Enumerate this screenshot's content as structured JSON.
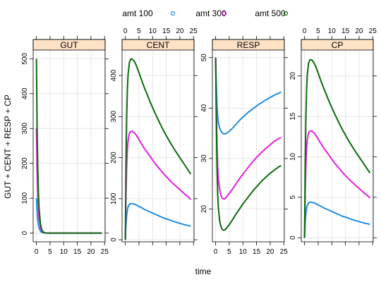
{
  "chart_data": {
    "type": "line",
    "layout": "lattice panels",
    "xlabel": "time",
    "ylabel": "GUT + CENT + RESP + CP",
    "legend_position": "top",
    "grid": true,
    "strip_color": "#fde2c6",
    "legend": [
      {
        "label": "amt 100",
        "color": "#1f8de0"
      },
      {
        "label": "amt 300",
        "color": "#e31ee0"
      },
      {
        "label": "amt 500",
        "color": "#0b6b0b"
      }
    ],
    "x": [
      0,
      0.25,
      0.5,
      0.75,
      1,
      1.5,
      2,
      2.5,
      3,
      3.5,
      4,
      5,
      6,
      7,
      8,
      9,
      10,
      11,
      12,
      13,
      14,
      15,
      16,
      17,
      18,
      19,
      20,
      21,
      22,
      23,
      24
    ],
    "xlim": [
      -1.2,
      25.2
    ],
    "xticks": [
      "0",
      "5",
      "10",
      "15",
      "20",
      "25"
    ],
    "panels": [
      {
        "title": "GUT",
        "ylim": [
          -25,
          525
        ],
        "yticks": [
          "0",
          "100",
          "200",
          "300",
          "400",
          "500"
        ],
        "series": [
          {
            "name": "amt 100",
            "values": [
              100,
              61,
              37,
              22,
              14,
              5,
              2,
              1,
              0.5,
              0.2,
              0.1,
              0,
              0,
              0,
              0,
              0,
              0,
              0,
              0,
              0,
              0,
              0,
              0,
              0,
              0,
              0,
              0,
              0,
              0,
              0,
              0
            ]
          },
          {
            "name": "amt 300",
            "values": [
              300,
              182,
              110,
              67,
              41,
              15,
              6,
              2,
              1,
              0.3,
              0.1,
              0,
              0,
              0,
              0,
              0,
              0,
              0,
              0,
              0,
              0,
              0,
              0,
              0,
              0,
              0,
              0,
              0,
              0,
              0,
              0
            ]
          },
          {
            "name": "amt 500",
            "values": [
              500,
              303,
              184,
              112,
              68,
              25,
              9,
              3,
              1,
              0.5,
              0.2,
              0,
              0,
              0,
              0,
              0,
              0,
              0,
              0,
              0,
              0,
              0,
              0,
              0,
              0,
              0,
              0,
              0,
              0,
              0,
              0
            ]
          }
        ]
      },
      {
        "title": "CENT",
        "ylim": [
          -5,
          462
        ],
        "yticks": [
          "0",
          "100",
          "200",
          "300",
          "400"
        ],
        "series": [
          {
            "name": "amt 100",
            "values": [
              0,
              38,
              60,
              73,
              80,
              86,
              88,
              88,
              87,
              86,
              85,
              81,
              78,
              74,
              71,
              68,
              65,
              62,
              59,
              56,
              53,
              51,
              49,
              46,
              44,
              42,
              40,
              38,
              36,
              35,
              33
            ]
          },
          {
            "name": "amt 300",
            "values": [
              0,
              114,
              181,
              219,
              241,
              259,
              264,
              264,
              262,
              259,
              255,
              244,
              233,
              222,
              213,
              204,
              194,
              185,
              177,
              169,
              161,
              154,
              147,
              140,
              134,
              128,
              122,
              116,
              110,
              105,
              98
            ]
          },
          {
            "name": "amt 500",
            "values": [
              0,
              190,
              301,
              365,
              402,
              432,
              440,
              440,
              437,
              432,
              425,
              407,
              388,
              370,
              354,
              337,
              322,
              307,
              293,
              279,
              266,
              254,
              242,
              231,
              220,
              210,
              200,
              190,
              180,
              170,
              160
            ]
          }
        ]
      },
      {
        "title": "RESP",
        "ylim": [
          13.5,
          51.5
        ],
        "yticks": [
          "20",
          "30",
          "40",
          "50"
        ],
        "series": [
          {
            "name": "amt 100",
            "values": [
              50,
              44.5,
              40.5,
              38.3,
              37.1,
              36,
              35.4,
              35,
              34.9,
              34.9,
              35,
              35.4,
              35.9,
              36.5,
              37.1,
              37.7,
              38.2,
              38.7,
              39.2,
              39.6,
              40,
              40.4,
              40.8,
              41.1,
              41.5,
              41.8,
              42.1,
              42.4,
              42.7,
              42.9,
              43.2
            ]
          },
          {
            "name": "amt 300",
            "values": [
              50,
              40.5,
              33,
              28.5,
              26,
              23.8,
              22.6,
              22.1,
              22,
              22.1,
              22.4,
              23.1,
              23.8,
              24.6,
              25.4,
              26.2,
              26.9,
              27.6,
              28.3,
              29,
              29.6,
              30.2,
              30.8,
              31.3,
              31.8,
              32.3,
              32.7,
              33.2,
              33.6,
              33.9,
              34.2
            ]
          },
          {
            "name": "amt 500",
            "values": [
              50,
              37,
              28,
              23,
              20.2,
              17.6,
              16.4,
              15.9,
              15.8,
              15.9,
              16.2,
              16.9,
              17.7,
              18.6,
              19.4,
              20.2,
              21,
              21.7,
              22.4,
              23.1,
              23.8,
              24.4,
              25,
              25.6,
              26.1,
              26.6,
              27.1,
              27.5,
              27.9,
              28.3,
              28.6
            ]
          }
        ]
      },
      {
        "title": "CP",
        "ylim": [
          -0.5,
          23.2
        ],
        "yticks": [
          "0",
          "5",
          "10",
          "15",
          "20"
        ],
        "series": [
          {
            "name": "amt 100",
            "values": [
              0,
              1.9,
              3,
              3.7,
              4,
              4.3,
              4.4,
              4.4,
              4.35,
              4.3,
              4.25,
              4.05,
              3.9,
              3.7,
              3.55,
              3.4,
              3.25,
              3.1,
              2.95,
              2.8,
              2.65,
              2.55,
              2.45,
              2.3,
              2.2,
              2.1,
              2,
              1.9,
              1.8,
              1.75,
              1.65
            ]
          },
          {
            "name": "amt 300",
            "values": [
              0,
              5.7,
              9,
              11,
              12.1,
              13,
              13.2,
              13.2,
              13.1,
              12.95,
              12.75,
              12.2,
              11.65,
              11.1,
              10.65,
              10.2,
              9.7,
              9.25,
              8.85,
              8.45,
              8.05,
              7.7,
              7.35,
              7,
              6.7,
              6.4,
              6.1,
              5.8,
              5.5,
              5.25,
              4.9
            ]
          },
          {
            "name": "amt 500",
            "values": [
              0,
              9.5,
              15,
              18.3,
              20.1,
              21.6,
              22,
              22,
              21.85,
              21.6,
              21.25,
              20.35,
              19.4,
              18.5,
              17.7,
              16.85,
              16.1,
              15.35,
              14.65,
              13.95,
              13.3,
              12.7,
              12.1,
              11.55,
              11,
              10.5,
              10,
              9.5,
              9,
              8.5,
              8
            ]
          }
        ]
      }
    ]
  }
}
